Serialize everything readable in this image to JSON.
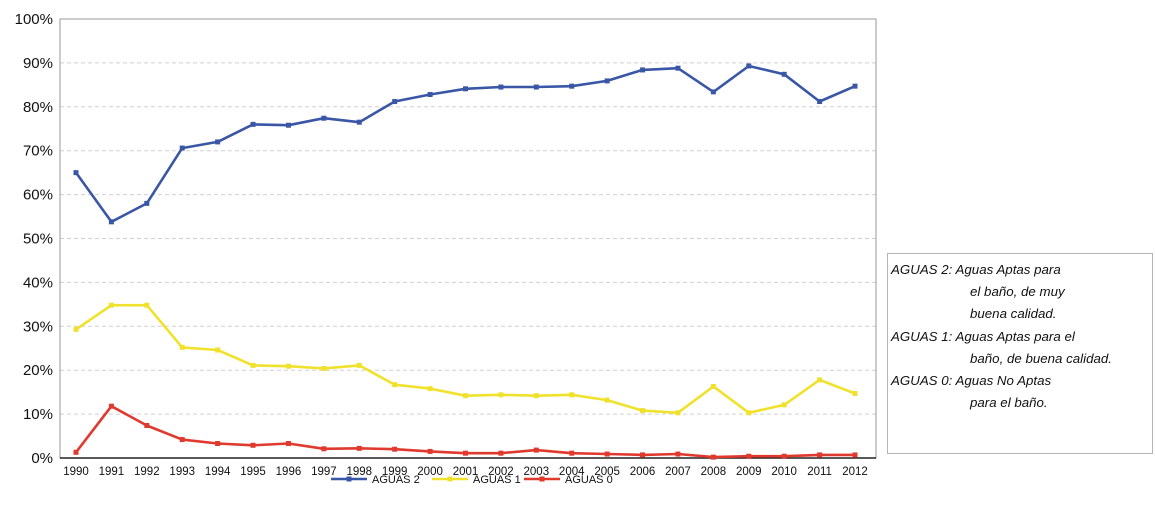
{
  "chart_data": {
    "type": "line",
    "x": [
      "1990",
      "1991",
      "1992",
      "1993",
      "1994",
      "1995",
      "1996",
      "1997",
      "1998",
      "1999",
      "2000",
      "2001",
      "2002",
      "2003",
      "2004",
      "2005",
      "2006",
      "2007",
      "2008",
      "2009",
      "2010",
      "2011",
      "2012"
    ],
    "yticks": [
      "0%",
      "10%",
      "20%",
      "30%",
      "40%",
      "50%",
      "60%",
      "70%",
      "80%",
      "90%",
      "100%"
    ],
    "ylim": [
      0,
      100
    ],
    "grid": "horizontal dashed",
    "legend_position": "bottom",
    "series": [
      {
        "name": "AGUAS 2",
        "color": "#3a56a6",
        "values": [
          65,
          53.8,
          58,
          70.6,
          72,
          76,
          75.8,
          77.4,
          76.5,
          81.2,
          82.8,
          84.1,
          84.5,
          84.5,
          84.7,
          85.9,
          88.4,
          88.8,
          83.4,
          89.3,
          87.4,
          81.2,
          84.7
        ]
      },
      {
        "name": "AGUAS 1",
        "color": "#f0e22c",
        "values": [
          29.3,
          34.8,
          34.8,
          25.2,
          24.6,
          21.1,
          20.9,
          20.4,
          21.1,
          16.7,
          15.8,
          14.2,
          14.4,
          14.2,
          14.4,
          13.2,
          10.8,
          10.3,
          16.3,
          10.3,
          12.1,
          17.8,
          14.7
        ]
      },
      {
        "name": "AGUAS 0",
        "color": "#e03a2e",
        "values": [
          1.3,
          11.8,
          7.4,
          4.2,
          3.3,
          2.9,
          3.3,
          2.1,
          2.2,
          2.0,
          1.5,
          1.1,
          1.1,
          1.8,
          1.1,
          0.9,
          0.7,
          0.9,
          0.2,
          0.4,
          0.4,
          0.7,
          0.7
        ]
      }
    ]
  },
  "notes": {
    "lines": [
      "AGUAS 2: Aguas Aptas para",
      "el baño, de muy",
      "buena calidad.",
      "AGUAS 1: Aguas Aptas para el",
      "baño, de buena calidad.",
      "AGUAS 0: Aguas No Aptas",
      "para el baño."
    ]
  }
}
